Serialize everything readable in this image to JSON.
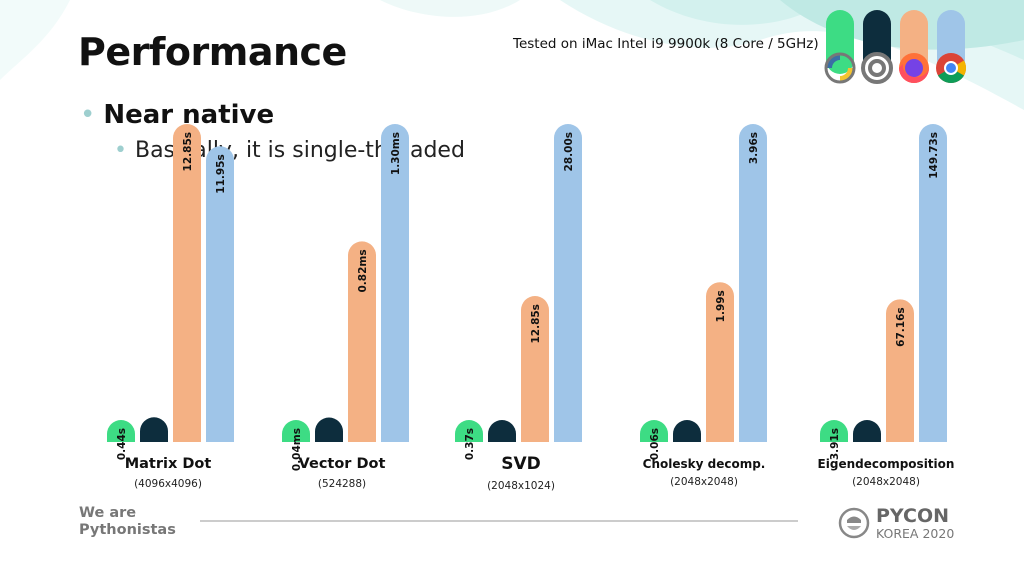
{
  "slide": {
    "title": "Performance",
    "note": "Tested on iMac Intel i9 9900k (8 Core / 5GHz)",
    "bullet1": "Near native",
    "bullet2": "Basically, it is single-threaded"
  },
  "legend_icons": [
    {
      "icon": "python-icon",
      "color": "#3ddc84"
    },
    {
      "icon": "graalvm-icon",
      "color": "#0d2d3d"
    },
    {
      "icon": "firefox-icon",
      "color": "#f4b184"
    },
    {
      "icon": "chrome-icon",
      "color": "#9fc5e8"
    }
  ],
  "chart_data": {
    "type": "bar",
    "series_colors": [
      "#3ddc84",
      "#0d2d3d",
      "#f4b184",
      "#9fc5e8"
    ],
    "groups": [
      {
        "name": "Matrix Dot",
        "sub": "(4096x4096)",
        "values": [
          0.44,
          1.0,
          12.85,
          11.95
        ],
        "labels": [
          "0.44s",
          "",
          "12.85s",
          "11.95s"
        ]
      },
      {
        "name": "Vector Dot",
        "sub": "(524288)",
        "values": [
          0.04,
          0.1,
          0.82,
          1.3
        ],
        "labels": [
          "0.04ms",
          "",
          "0.82ms",
          "1.30ms"
        ]
      },
      {
        "name": "SVD",
        "sub": "(2048x1024)",
        "values": [
          0.37,
          1.0,
          12.85,
          28.0
        ],
        "labels": [
          "0.37s",
          "",
          "12.85s",
          "28.00s"
        ]
      },
      {
        "name": "Cholesky decomp.",
        "sub": "(2048x2048)",
        "values": [
          0.06,
          0.12,
          1.99,
          3.96
        ],
        "labels": [
          "0.06s",
          "",
          "1.99s",
          "3.96s"
        ]
      },
      {
        "name": "Eigendecomposition",
        "sub": "(2048x2048)",
        "values": [
          3.91,
          10.0,
          67.16,
          149.73
        ],
        "labels": [
          "3.91s",
          "",
          "67.16s",
          "149.73s"
        ]
      }
    ]
  },
  "footer": {
    "left_line1": "We are",
    "left_line2": "Pythonistas",
    "brand": "PYCON",
    "brand_sub": "KOREA 2020"
  }
}
